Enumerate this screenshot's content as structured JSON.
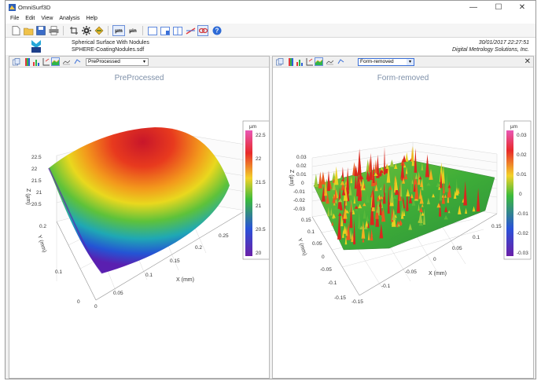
{
  "window": {
    "title": "OmniSurf3D",
    "minimize": "—",
    "maximize": "☐",
    "close": "✕"
  },
  "menu": [
    "File",
    "Edit",
    "View",
    "Analysis",
    "Help"
  ],
  "toolbar": {
    "units_um": "µm",
    "units_uin": "µin"
  },
  "info": {
    "surface_name": "Spherical Surface With Nodules",
    "file_name": "SPHERE-CoatingNodules.sdf",
    "datetime": "30/01/2017  22:27:51",
    "company": "Digital Metrology Solutions, Inc."
  },
  "left_pane": {
    "dropdown_value": "PreProcessed",
    "plot_title": "PreProcessed",
    "colorbar_unit": "µm",
    "colorbar_ticks": [
      "22.5",
      "22",
      "21.5",
      "21",
      "20.5",
      "20"
    ],
    "z_ticks": [
      "22.5",
      "22",
      "21.5",
      "21",
      "20.5"
    ],
    "y_ticks": [
      "0.2",
      "0.1",
      "0"
    ],
    "x_ticks": [
      "0",
      "0.05",
      "0.1",
      "0.15",
      "0.2",
      "0.25"
    ],
    "z_label": "Z (µm)",
    "y_label": "Y (mm)",
    "x_label": "X (mm)"
  },
  "right_pane": {
    "dropdown_value": "Form-removed",
    "plot_title": "Form-removed",
    "close": "✕",
    "colorbar_unit": "µm",
    "colorbar_ticks": [
      "0.03",
      "0.02",
      "0.01",
      "0",
      "-0.01",
      "-0.02",
      "-0.03"
    ],
    "z_ticks": [
      "0.03",
      "0.02",
      "0.01",
      "0",
      "-0.01",
      "-0.02",
      "-0.03"
    ],
    "y_ticks": [
      "0.15",
      "0.1",
      "0.05",
      "0",
      "-0.05",
      "-0.1",
      "-0.15"
    ],
    "x_ticks": [
      "-0.15",
      "-0.1",
      "-0.05",
      "0",
      "0.05",
      "0.1",
      "0.15"
    ],
    "z_label": "Z (µm)",
    "y_label": "Y (mm)",
    "x_label": "X (mm)"
  },
  "colors": {
    "title_color": "#7d8fa8",
    "accent": "#3a6fd8"
  }
}
